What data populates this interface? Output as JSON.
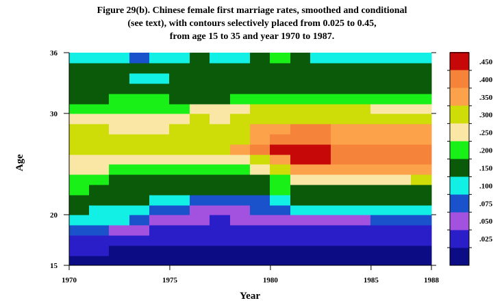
{
  "chart_data": {
    "type": "heatmap",
    "title_lines": [
      "Figure 29(b). Chinese female first marriage rates, smoothed and conditional",
      "(see text), with contours selectively placed from 0.025 to 0.45,",
      "from age 15 to 35 and year 1970 to 1987."
    ],
    "xlabel": "Year",
    "ylabel": "Age",
    "xlim": [
      1970,
      1988
    ],
    "ylim": [
      15,
      36
    ],
    "x_ticks": [
      1970,
      1975,
      1980,
      1985,
      1988
    ],
    "y_ticks": [
      15,
      20,
      30,
      36
    ],
    "colorbar": {
      "labels": [
        ".025",
        ".050",
        ".075",
        ".100",
        ".150",
        ".200",
        ".250",
        ".300",
        ".350",
        ".400",
        ".450"
      ],
      "colors": [
        "#0c0c84",
        "#2a1ec8",
        "#a352e0",
        "#1a52cc",
        "#12f0e6",
        "#0a5a0a",
        "#18f018",
        "#fae7a5",
        "#cedc08",
        "#fba24a",
        "#f5843a",
        "#c60808"
      ]
    },
    "x_cols": [
      1970,
      1971,
      1972,
      1973,
      1974,
      1975,
      1976,
      1977,
      1978,
      1979,
      1980,
      1981,
      1982,
      1983,
      1984,
      1985,
      1986,
      1987
    ],
    "y_rows": [
      15,
      16,
      17,
      18,
      19,
      20,
      21,
      22,
      23,
      24,
      25,
      26,
      27,
      28,
      29,
      30,
      31,
      32,
      33,
      34,
      35
    ],
    "levels": [
      [
        0,
        0,
        0,
        0,
        0,
        0,
        0,
        0,
        0,
        0,
        0,
        0,
        0,
        0,
        0,
        0,
        0,
        0
      ],
      [
        1,
        1,
        0,
        0,
        0,
        0,
        0,
        0,
        0,
        0,
        0,
        0,
        0,
        0,
        0,
        0,
        0,
        0
      ],
      [
        1,
        1,
        1,
        1,
        1,
        1,
        1,
        1,
        1,
        1,
        1,
        1,
        1,
        1,
        1,
        1,
        1,
        1
      ],
      [
        3,
        3,
        2,
        2,
        1,
        1,
        1,
        1,
        1,
        1,
        1,
        1,
        1,
        1,
        1,
        1,
        1,
        1
      ],
      [
        4,
        4,
        4,
        3,
        2,
        2,
        2,
        1,
        2,
        2,
        2,
        2,
        2,
        2,
        2,
        3,
        3,
        3
      ],
      [
        5,
        4,
        4,
        4,
        3,
        3,
        2,
        2,
        2,
        3,
        3,
        4,
        4,
        4,
        4,
        4,
        4,
        4
      ],
      [
        5,
        5,
        5,
        5,
        4,
        4,
        3,
        3,
        3,
        3,
        4,
        5,
        5,
        5,
        5,
        5,
        5,
        5
      ],
      [
        6,
        5,
        5,
        5,
        5,
        5,
        5,
        5,
        5,
        5,
        6,
        5,
        5,
        5,
        5,
        5,
        5,
        5
      ],
      [
        6,
        6,
        5,
        5,
        5,
        5,
        5,
        5,
        5,
        5,
        6,
        7,
        7,
        7,
        7,
        7,
        7,
        8
      ],
      [
        7,
        7,
        6,
        6,
        6,
        6,
        6,
        6,
        6,
        7,
        8,
        9,
        9,
        9,
        9,
        9,
        9,
        9
      ],
      [
        7,
        7,
        7,
        7,
        7,
        7,
        7,
        7,
        7,
        8,
        9,
        11,
        11,
        10,
        10,
        10,
        10,
        10
      ],
      [
        8,
        8,
        8,
        8,
        8,
        8,
        8,
        8,
        9,
        10,
        11,
        11,
        11,
        10,
        10,
        10,
        10,
        10
      ],
      [
        8,
        8,
        8,
        8,
        8,
        8,
        8,
        8,
        8,
        9,
        10,
        10,
        10,
        9,
        9,
        9,
        9,
        9
      ],
      [
        8,
        8,
        7,
        7,
        7,
        8,
        8,
        8,
        8,
        9,
        9,
        10,
        10,
        9,
        9,
        9,
        9,
        9
      ],
      [
        7,
        7,
        7,
        7,
        7,
        7,
        8,
        7,
        8,
        8,
        8,
        8,
        8,
        8,
        8,
        8,
        8,
        8
      ],
      [
        6,
        6,
        6,
        6,
        6,
        6,
        7,
        7,
        7,
        8,
        8,
        8,
        8,
        8,
        8,
        7,
        7,
        7
      ],
      [
        5,
        5,
        6,
        6,
        6,
        5,
        5,
        5,
        6,
        6,
        6,
        6,
        6,
        6,
        6,
        6,
        6,
        6
      ],
      [
        5,
        5,
        5,
        5,
        5,
        5,
        5,
        5,
        5,
        5,
        5,
        5,
        5,
        5,
        5,
        5,
        5,
        5
      ],
      [
        5,
        5,
        5,
        4,
        4,
        5,
        5,
        5,
        5,
        5,
        5,
        5,
        5,
        5,
        5,
        5,
        5,
        5
      ],
      [
        5,
        5,
        5,
        5,
        5,
        5,
        5,
        5,
        5,
        5,
        5,
        5,
        5,
        5,
        5,
        5,
        5,
        5
      ],
      [
        4,
        4,
        4,
        3,
        4,
        4,
        5,
        4,
        4,
        5,
        6,
        5,
        4,
        4,
        4,
        4,
        4,
        4
      ]
    ]
  }
}
